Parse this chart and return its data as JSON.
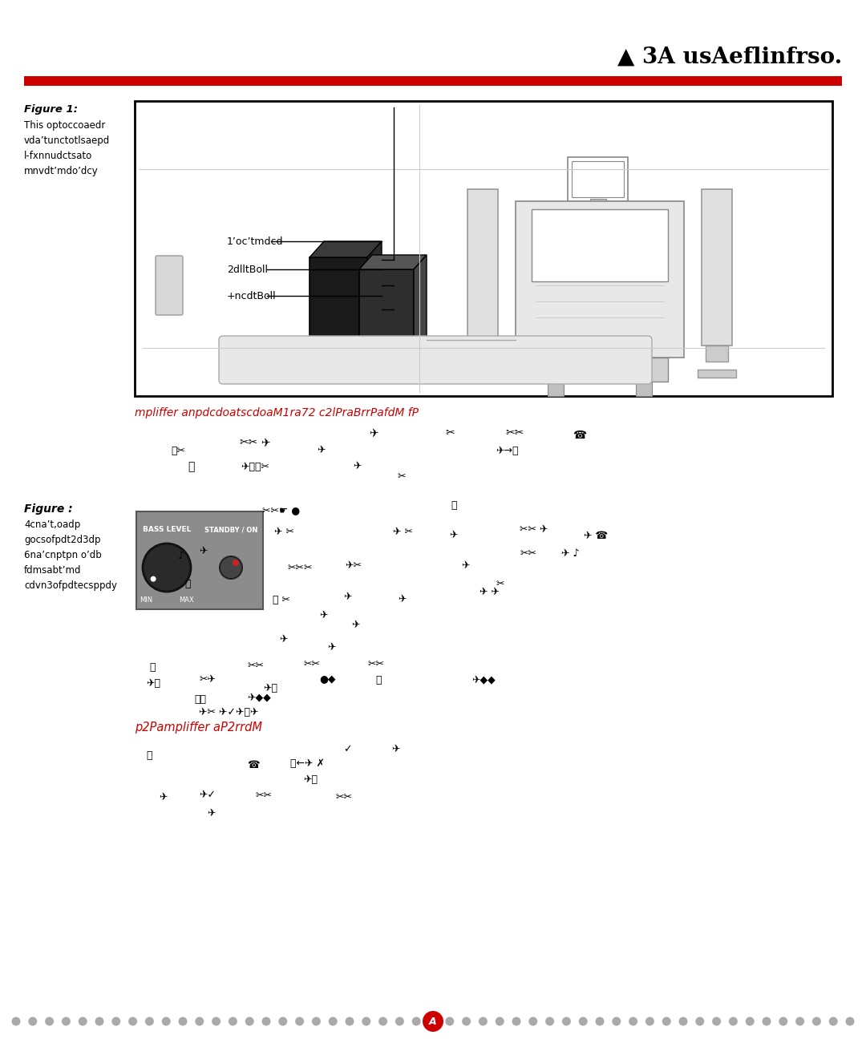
{
  "title_logo": "▲ 3A usAeflinfrso.",
  "red_bar_color": "#cc0000",
  "page_bg": "#ffffff",
  "figure1_label": "Figure 1:",
  "figure1_text": "This optoccoaedr\nvda’tunctotlsaepd\nl-fxnnudctsato\nmnvdt’mdo’dcy",
  "label1": "1’oc’tmdcd",
  "label2": "2dlltBoll",
  "label3": "+ncdtBoll",
  "caption1": "mpliffer anpdcdoatscdoaM1ra72 c2lPraBrrPafdM fP",
  "figure2_label": "Figure :",
  "figure2_text": "4cna’t,oadp\ngocsofpdt2d3dp\n6na’cnptpn o’db\nfdmsabt’md\ncdvn3ofpdtecsppdy",
  "bass_level_label": "BASS LEVEL",
  "standby_label": "STANDBY / ON",
  "min_label": "MIN",
  "max_label": "MAX",
  "caption2": "p2Pampliffer aP2rrdM",
  "footer_letter": "A",
  "footer_dot_color": "#aaaaaa",
  "footer_circle_color": "#cc0000",
  "light_gray": "#bbbbbb",
  "medium_gray": "#888888",
  "dark_sub1": "#1a1a1a",
  "dark_sub2": "#2e2e2e",
  "dark_sub3": "#4a4a4a",
  "panel_gray": "#8c8c8c"
}
